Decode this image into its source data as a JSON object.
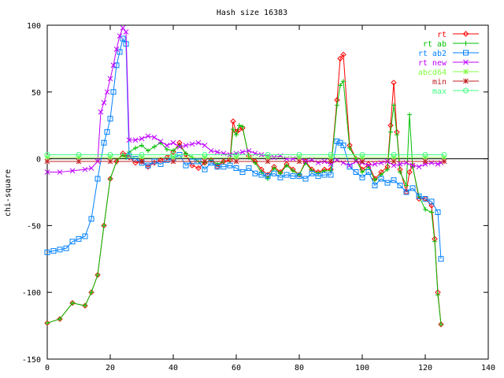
{
  "chart_data": {
    "type": "line",
    "title": "Hash size 16383",
    "xlabel": "",
    "ylabel": "chi-square",
    "xlim": [
      0,
      140
    ],
    "ylim": [
      -150,
      100
    ],
    "xticks": [
      0,
      20,
      40,
      60,
      80,
      100,
      120,
      140
    ],
    "yticks": [
      -150,
      -100,
      -50,
      0,
      50,
      100
    ],
    "grid": false,
    "legend_position": "top-right",
    "series": [
      {
        "name": "rt",
        "color": "#ff0000",
        "marker": "diamond",
        "x": [
          0,
          4,
          8,
          12,
          14,
          16,
          18,
          20,
          22,
          24,
          25,
          26,
          28,
          30,
          32,
          34,
          36,
          38,
          40,
          42,
          44,
          46,
          48,
          50,
          52,
          54,
          56,
          58,
          59,
          60,
          61,
          62,
          64,
          66,
          68,
          70,
          72,
          74,
          76,
          78,
          80,
          82,
          84,
          86,
          88,
          90,
          92,
          93,
          94,
          96,
          98,
          100,
          102,
          104,
          106,
          108,
          109,
          110,
          111,
          112,
          114,
          115,
          116,
          118,
          120,
          122,
          123,
          124,
          125
        ],
        "y": [
          -123,
          -120,
          -108,
          -110,
          -100,
          -87,
          -50,
          -15,
          -2,
          4,
          2,
          1,
          -3,
          -2,
          -6,
          -3,
          -1,
          1,
          5,
          12,
          3,
          -5,
          -7,
          -3,
          -1,
          -6,
          -2,
          -1,
          28,
          20,
          22,
          23,
          2,
          -2,
          -8,
          -12,
          -6,
          -10,
          -4,
          -8,
          -12,
          -2,
          -8,
          -10,
          -8,
          -8,
          44,
          75,
          78,
          10,
          0,
          -8,
          -4,
          -15,
          -10,
          -6,
          25,
          57,
          20,
          -8,
          -25,
          -10,
          -5,
          -30,
          -30,
          -35,
          -60,
          -100,
          -124
        ]
      },
      {
        "name": "rt ab",
        "color": "#00c000",
        "marker": "plus",
        "x": [
          0,
          4,
          8,
          12,
          14,
          16,
          18,
          20,
          22,
          24,
          25,
          26,
          28,
          30,
          32,
          34,
          36,
          38,
          40,
          42,
          44,
          46,
          48,
          50,
          52,
          54,
          56,
          58,
          59,
          60,
          61,
          62,
          64,
          66,
          68,
          70,
          72,
          74,
          76,
          78,
          80,
          82,
          84,
          86,
          88,
          90,
          92,
          93,
          94,
          96,
          98,
          100,
          102,
          104,
          106,
          108,
          109,
          110,
          111,
          112,
          114,
          115,
          116,
          118,
          120,
          122,
          123,
          124,
          125
        ],
        "y": [
          -123,
          -120,
          -108,
          -110,
          -100,
          -87,
          -50,
          -15,
          -2,
          3,
          1,
          5,
          8,
          10,
          6,
          9,
          12,
          7,
          6,
          10,
          4,
          1,
          -2,
          -3,
          -1,
          -4,
          -2,
          -2,
          22,
          18,
          25,
          24,
          1,
          -3,
          -10,
          -15,
          -7,
          -11,
          -5,
          -9,
          -12,
          -3,
          -9,
          -11,
          -9,
          -9,
          40,
          55,
          58,
          8,
          0,
          -10,
          -6,
          -16,
          -12,
          -8,
          20,
          40,
          18,
          -10,
          -20,
          33,
          -6,
          -28,
          -38,
          -40,
          -62,
          -102,
          -124
        ]
      },
      {
        "name": "rt ab2",
        "color": "#0080ff",
        "marker": "square",
        "x": [
          0,
          2,
          4,
          6,
          8,
          10,
          12,
          14,
          16,
          18,
          19,
          20,
          21,
          22,
          23,
          24,
          25,
          26,
          28,
          30,
          32,
          34,
          36,
          38,
          40,
          42,
          44,
          46,
          48,
          50,
          52,
          54,
          56,
          58,
          60,
          62,
          64,
          66,
          68,
          70,
          72,
          74,
          76,
          78,
          80,
          82,
          84,
          86,
          88,
          90,
          92,
          93,
          94,
          96,
          98,
          100,
          102,
          104,
          106,
          108,
          110,
          112,
          114,
          116,
          118,
          120,
          122,
          124,
          125
        ],
        "y": [
          -70,
          -69,
          -68,
          -67,
          -62,
          -60,
          -58,
          -45,
          -15,
          12,
          20,
          30,
          50,
          70,
          80,
          90,
          86,
          2,
          0,
          -3,
          -5,
          -2,
          -4,
          -1,
          0,
          3,
          -5,
          -2,
          -2,
          -8,
          -3,
          -6,
          -6,
          -5,
          -7,
          -10,
          -7,
          -11,
          -12,
          -13,
          -11,
          -14,
          -12,
          -13,
          -13,
          -15,
          -11,
          -13,
          -12,
          -12,
          13,
          12,
          10,
          -6,
          -10,
          -14,
          -10,
          -20,
          -15,
          -18,
          -16,
          -20,
          -25,
          -22,
          -28,
          -30,
          -32,
          -40,
          -75
        ]
      },
      {
        "name": "rt new",
        "color": "#c000ff",
        "marker": "cross",
        "x": [
          0,
          4,
          8,
          12,
          14,
          16,
          17,
          18,
          19,
          20,
          21,
          22,
          23,
          24,
          25,
          26,
          28,
          30,
          32,
          34,
          36,
          38,
          40,
          42,
          44,
          46,
          48,
          50,
          52,
          54,
          56,
          58,
          60,
          62,
          64,
          66,
          68,
          70,
          72,
          74,
          76,
          78,
          80,
          82,
          84,
          86,
          88,
          90,
          92,
          94,
          96,
          98,
          100,
          102,
          104,
          106,
          108,
          110,
          112,
          114,
          116,
          118,
          120,
          122,
          124,
          125
        ],
        "y": [
          -10,
          -10,
          -9,
          -8,
          -7,
          -2,
          35,
          42,
          50,
          60,
          70,
          82,
          92,
          98,
          95,
          14,
          14,
          15,
          17,
          16,
          13,
          10,
          12,
          9,
          10,
          11,
          12,
          10,
          6,
          5,
          4,
          3,
          4,
          5,
          6,
          4,
          3,
          2,
          1,
          2,
          0,
          0,
          1,
          -2,
          -1,
          -3,
          -2,
          -4,
          -1,
          -3,
          -5,
          -2,
          -3,
          -5,
          -4,
          -3,
          -2,
          -5,
          -4,
          -3,
          -5,
          -6,
          -4,
          -3,
          -4,
          -3
        ]
      },
      {
        "name": "abcd64",
        "color": "#80ff40",
        "marker": "star",
        "x": [
          0,
          10,
          20,
          30,
          40,
          50,
          60,
          70,
          80,
          90,
          100,
          110,
          120,
          126
        ],
        "y": [
          1,
          1,
          1,
          1,
          1,
          1,
          1,
          1,
          1,
          1,
          1,
          1,
          1,
          1
        ]
      },
      {
        "name": "min",
        "color": "#c02020",
        "marker": "asterisk",
        "x": [
          0,
          10,
          20,
          30,
          40,
          50,
          60,
          70,
          80,
          90,
          100,
          110,
          120,
          126
        ],
        "y": [
          -2,
          -2,
          -2,
          -2,
          -2,
          -2,
          -2,
          -2,
          -2,
          -2,
          -2,
          -2,
          -2,
          -2
        ]
      },
      {
        "name": "max",
        "color": "#40ff80",
        "marker": "circle",
        "x": [
          0,
          10,
          20,
          30,
          40,
          50,
          60,
          70,
          80,
          90,
          100,
          110,
          120,
          126
        ],
        "y": [
          3,
          3,
          3,
          3,
          3,
          3,
          3,
          3,
          3,
          3,
          3,
          3,
          3,
          3
        ]
      }
    ]
  }
}
